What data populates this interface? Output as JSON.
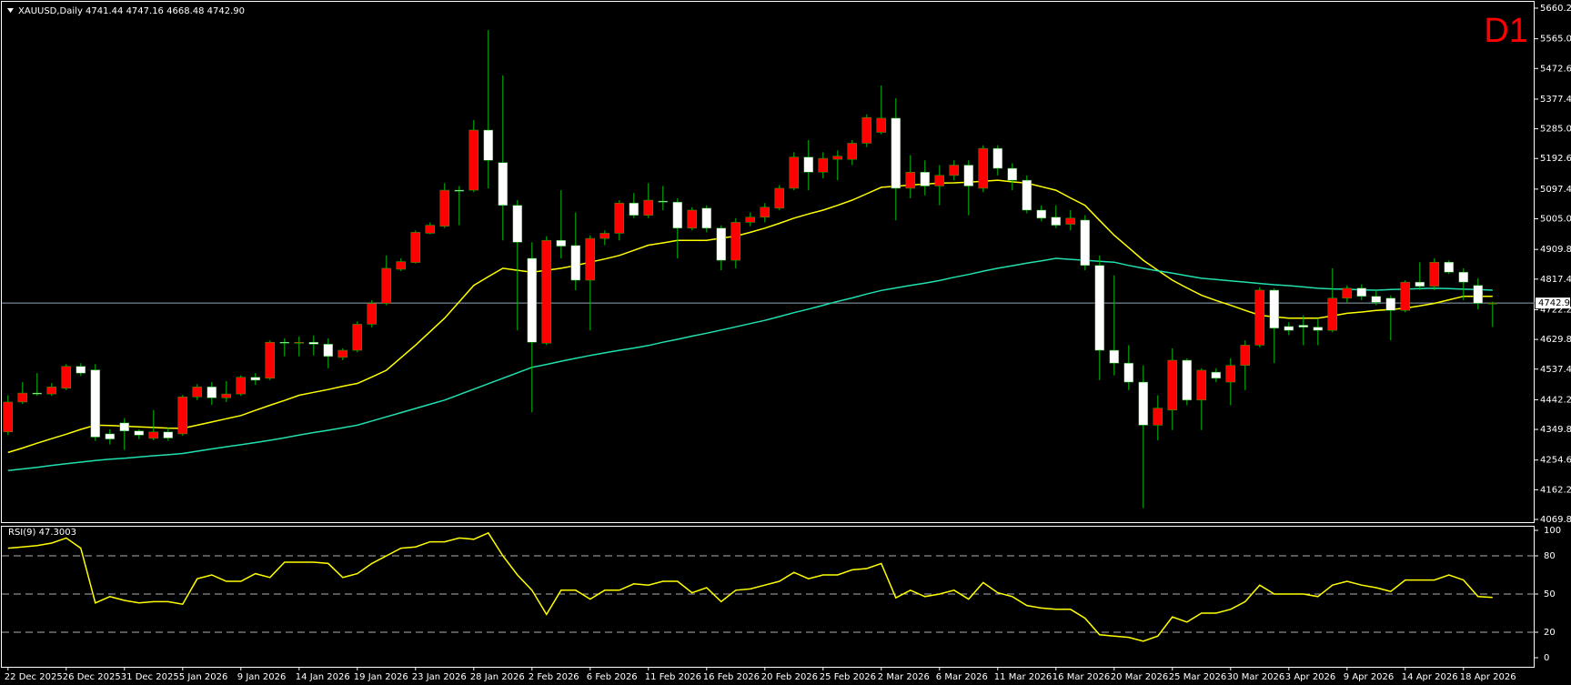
{
  "chart_data": [
    {
      "type": "candlestick",
      "title": "XAUUSD,Daily  4741.44 4747.16 4668.48 4742.90",
      "timeframe": "D1",
      "categories": [
        "22 Dec 2025",
        null,
        null,
        null,
        "26 Dec 2025",
        null,
        null,
        null,
        "31 Dec 2025",
        null,
        null,
        null,
        "5 Jan 2026",
        null,
        null,
        null,
        "9 Jan 2026",
        null,
        null,
        null,
        "14 Jan 2026",
        null,
        null,
        null,
        "19 Jan 2026",
        null,
        null,
        null,
        "23 Jan 2026",
        null,
        null,
        null,
        "28 Jan 2026",
        null,
        null,
        null,
        "2 Feb 2026",
        null,
        null,
        null,
        "6 Feb 2026",
        null,
        null,
        null,
        "11 Feb 2026",
        null,
        null,
        null,
        "16 Feb 2026",
        null,
        null,
        null,
        "20 Feb 2026",
        null,
        null,
        null,
        "25 Feb 2026",
        null,
        null,
        null,
        "2 Mar 2026",
        null,
        null,
        null,
        "6 Mar 2026",
        null,
        null,
        null,
        "11 Mar 2026",
        null,
        null,
        null,
        "16 Mar 2026",
        null,
        null,
        null,
        "20 Mar 2026",
        null,
        null,
        null,
        "25 Mar 2026",
        null,
        null,
        null,
        "30 Mar 2026",
        null,
        null,
        null,
        "3 Apr 2026",
        null,
        null,
        null,
        "9 Apr 2026",
        null,
        null,
        null,
        "14 Apr 2026",
        null,
        null,
        null,
        "18 Apr 2026",
        null,
        null
      ],
      "open": [
        4342,
        4435,
        4463,
        4460,
        4478,
        4546,
        4535,
        4336,
        4370,
        4345,
        4322,
        4342,
        4336,
        4451,
        4482,
        4448,
        4460,
        4512,
        4509,
        4621,
        4618,
        4621,
        4615,
        4574,
        4596,
        4677,
        4742,
        4848,
        4869,
        4960,
        4982,
        5094,
        5094,
        5281,
        5180,
        5047,
        4882,
        4618,
        4938,
        4922,
        4814,
        4944,
        4960,
        5054,
        5016,
        5060,
        5057,
        4976,
        5038,
        4976,
        4876,
        4994,
        5010,
        5038,
        5100,
        5197,
        5150,
        5190,
        5190,
        5240,
        5274,
        5318,
        5100,
        5150,
        5107,
        5140,
        5172,
        5100,
        5224,
        5162,
        5125,
        5032,
        5010,
        4988,
        5001,
        4860,
        4596,
        4556,
        4497,
        4363,
        4410,
        4565,
        4441,
        4528,
        4497,
        4549,
        4612,
        4783,
        4670,
        4674,
        4668,
        4658,
        4758,
        4789,
        4764,
        4758,
        4720,
        4808,
        4795,
        4870,
        4839,
        4798,
        4741.44
      ],
      "high": [
        4456,
        4497,
        4525,
        4494,
        4553,
        4556,
        4553,
        4350,
        4385,
        4350,
        4410,
        4355,
        4457,
        4491,
        4497,
        4500,
        4518,
        4525,
        4627,
        4633,
        4639,
        4642,
        4633,
        4602,
        4686,
        4752,
        4891,
        4882,
        4969,
        4994,
        5116,
        5107,
        5312,
        5592,
        5451,
        5063,
        4932,
        4951,
        5094,
        5025,
        4954,
        4969,
        5063,
        5085,
        5116,
        5107,
        5069,
        5041,
        5047,
        4985,
        5007,
        5025,
        5054,
        5110,
        5212,
        5250,
        5212,
        5218,
        5250,
        5330,
        5420,
        5380,
        5203,
        5187,
        5172,
        5187,
        5187,
        5234,
        5234,
        5178,
        5140,
        5047,
        5047,
        5032,
        5016,
        4891,
        4829,
        4612,
        4549,
        4456,
        4602,
        4571,
        4540,
        4540,
        4571,
        4627,
        4792,
        4789,
        4683,
        4705,
        4695,
        4851,
        4798,
        4801,
        4783,
        4767,
        4814,
        4870,
        4882,
        4876,
        4851,
        4820,
        4747.16
      ],
      "low": [
        4332,
        4429,
        4454,
        4454,
        4472,
        4516,
        4314,
        4303,
        4286,
        4320,
        4316,
        4314,
        4330,
        4441,
        4426,
        4435,
        4454,
        4488,
        4503,
        4577,
        4577,
        4580,
        4540,
        4565,
        4590,
        4667,
        4736,
        4842,
        4866,
        4957,
        4976,
        4985,
        5088,
        5100,
        4938,
        4658,
        4403,
        4612,
        4882,
        4783,
        4658,
        4923,
        4938,
        5007,
        5007,
        5032,
        4882,
        4969,
        4963,
        4845,
        4851,
        4982,
        4994,
        5032,
        5094,
        5094,
        5131,
        5125,
        5172,
        5228,
        5268,
        5000,
        5069,
        5078,
        5047,
        5125,
        5016,
        5088,
        5140,
        5094,
        5022,
        4997,
        4976,
        4969,
        4845,
        4503,
        4518,
        4472,
        4105,
        4316,
        4348,
        4425,
        4348,
        4497,
        4425,
        4472,
        4605,
        4556,
        4643,
        4612,
        4612,
        4652,
        4745,
        4752,
        4736,
        4627,
        4714,
        4783,
        4783,
        4833,
        4752,
        4723,
        4668.48
      ],
      "close": [
        4435,
        4463,
        4460,
        4482,
        4546,
        4525,
        4326,
        4320,
        4345,
        4332,
        4342,
        4323,
        4451,
        4482,
        4448,
        4460,
        4512,
        4503,
        4621,
        4618,
        4621,
        4615,
        4577,
        4596,
        4677,
        4742,
        4851,
        4872,
        4963,
        4985,
        5094,
        5091,
        5281,
        5187,
        5047,
        4932,
        4621,
        4938,
        4920,
        4814,
        4944,
        4960,
        5054,
        5016,
        5063,
        5057,
        4976,
        5032,
        4976,
        4876,
        4994,
        5010,
        5041,
        5100,
        5197,
        5150,
        5193,
        5200,
        5240,
        5320,
        5318,
        5100,
        5150,
        5107,
        5140,
        5172,
        5107,
        5224,
        5162,
        5125,
        5032,
        5007,
        4985,
        5007,
        4860,
        4596,
        4556,
        4497,
        4363,
        4416,
        4565,
        4441,
        4534,
        4509,
        4549,
        4612,
        4783,
        4665,
        4658,
        4668,
        4658,
        4758,
        4789,
        4764,
        4745,
        4720,
        4808,
        4795,
        4870,
        4839,
        4808,
        4742,
        4742.9
      ],
      "up_color": "#ff0000",
      "down_color": "#ffffff",
      "wick_color": "#00c000",
      "moving_averages": [
        {
          "color": "#ffff00",
          "values": [
            4278,
            4292,
            4307,
            4321,
            4335,
            4350,
            4363,
            4362,
            4360,
            4358,
            4356,
            4354,
            4353,
            4363,
            4373,
            4383,
            4393,
            4409,
            4425,
            4440,
            4456,
            4465,
            4474,
            4484,
            4493,
            4513,
            4534,
            4573,
            4612,
            4654,
            4696,
            4747,
            4798,
            4825,
            4851,
            4845,
            4839,
            4845,
            4851,
            4860,
            4870,
            4880,
            4891,
            4907,
            4923,
            4930,
            4938,
            4938,
            4938,
            4945,
            4951,
            4963,
            4976,
            4991,
            5007,
            5020,
            5032,
            5047,
            5063,
            5083,
            5103,
            5106,
            5110,
            5113,
            5116,
            5117,
            5119,
            5122,
            5125,
            5120,
            5116,
            5105,
            5094,
            5070,
            5047,
            5000,
            4954,
            4915,
            4876,
            4845,
            4814,
            4790,
            4767,
            4751,
            4736,
            4720,
            4705,
            4700,
            4696,
            4696,
            4696,
            4703,
            4711,
            4715,
            4720,
            4723,
            4727,
            4734,
            4742,
            4753,
            4764,
            4764,
            4764
          ]
        },
        {
          "color": "#20e0b0",
          "values": [
            4222,
            4227,
            4232,
            4238,
            4243,
            4248,
            4253,
            4257,
            4260,
            4264,
            4268,
            4271,
            4275,
            4282,
            4289,
            4296,
            4302,
            4309,
            4316,
            4324,
            4332,
            4340,
            4347,
            4355,
            4363,
            4376,
            4389,
            4402,
            4415,
            4428,
            4441,
            4458,
            4475,
            4492,
            4509,
            4526,
            4543,
            4552,
            4562,
            4571,
            4580,
            4588,
            4596,
            4603,
            4611,
            4621,
            4630,
            4640,
            4649,
            4659,
            4669,
            4679,
            4689,
            4701,
            4713,
            4724,
            4736,
            4748,
            4759,
            4771,
            4782,
            4790,
            4798,
            4805,
            4813,
            4823,
            4832,
            4842,
            4851,
            4859,
            4867,
            4874,
            4882,
            4879,
            4876,
            4873,
            4870,
            4860,
            4851,
            4843,
            4836,
            4828,
            4820,
            4816,
            4812,
            4808,
            4804,
            4800,
            4797,
            4793,
            4789,
            4787,
            4786,
            4784,
            4783,
            4785,
            4786,
            4788,
            4789,
            4788,
            4786,
            4785,
            4783
          ]
        }
      ],
      "ylim": [
        4069.8,
        5660.2
      ],
      "yticks": [
        {
          "value": 5660.2,
          "label": "5660.20"
        },
        {
          "value": 5565,
          "label": "5565.00"
        },
        {
          "value": 5472.6,
          "label": "5472.60"
        },
        {
          "value": 5377.4,
          "label": "5377.40"
        },
        {
          "value": 5285,
          "label": "5285.00"
        },
        {
          "value": 5192.6,
          "label": "5192.60"
        },
        {
          "value": 5097.4,
          "label": "5097.40"
        },
        {
          "value": 5005,
          "label": "5005.00"
        },
        {
          "value": 4909.8,
          "label": "4909.80"
        },
        {
          "value": 4817.4,
          "label": "4817.40"
        },
        {
          "value": 4722.2,
          "label": "4722.20"
        },
        {
          "value": 4629.8,
          "label": "4629.80"
        },
        {
          "value": 4537.4,
          "label": "4537.40"
        },
        {
          "value": 4442.2,
          "label": "4442.20"
        },
        {
          "value": 4349.8,
          "label": "4349.80"
        },
        {
          "value": 4254.6,
          "label": "4254.60"
        },
        {
          "value": 4162.2,
          "label": "4162.20"
        },
        {
          "value": 4069.8,
          "label": "4069.80"
        }
      ],
      "price_line": {
        "value": 4742.9,
        "label": "4742.90",
        "color": "#8fa3b5"
      }
    },
    {
      "type": "line",
      "title": "RSI(9) 47.3003",
      "color": "#ffff00",
      "values": [
        86,
        87,
        88,
        90,
        94,
        86,
        43,
        48,
        45,
        43,
        44,
        44,
        42,
        62,
        65,
        60,
        60,
        66,
        63,
        75,
        75,
        75,
        74,
        63,
        66,
        74,
        80,
        86,
        87,
        91,
        91,
        94,
        93,
        98,
        80,
        65,
        53,
        34,
        53,
        53,
        46,
        53,
        53,
        58,
        57,
        60,
        60,
        51,
        55,
        44,
        53,
        54,
        57,
        60,
        67,
        62,
        65,
        65,
        69,
        70,
        74,
        47,
        53,
        48,
        50,
        53,
        46,
        59,
        51,
        48,
        41,
        39,
        38,
        38,
        31,
        18,
        17,
        16,
        13,
        17,
        32,
        28,
        35,
        35,
        38,
        44,
        57,
        50,
        50,
        50,
        48,
        57,
        60,
        57,
        55,
        52,
        61,
        61,
        61,
        65,
        61,
        48,
        47.3
      ],
      "ylim": [
        0,
        100
      ],
      "yticks": [
        100,
        80,
        50,
        20,
        0
      ],
      "levels": [
        80,
        50,
        20
      ]
    }
  ]
}
